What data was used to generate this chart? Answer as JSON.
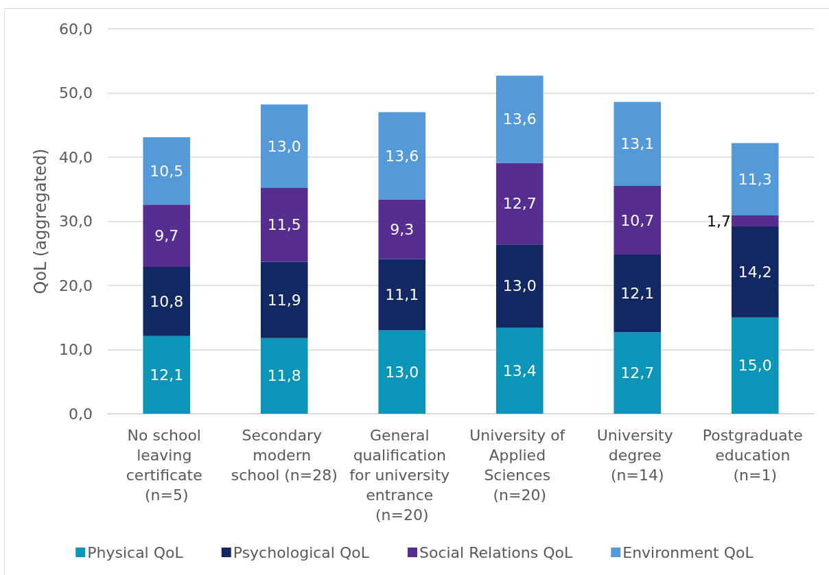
{
  "chart_data": {
    "type": "bar",
    "stacked": true,
    "ylabel": "QoL (aggregated)",
    "categories": [
      "No school leaving certificate (n=5)",
      "Secondary modern school (n=28)",
      "General qualification for university entrance (n=20)",
      "University of Applied Sciences (n=20)",
      "University degree (n=14)",
      "Postgraduate education (n=1)"
    ],
    "series": [
      {
        "name": "Physical QoL",
        "color": "#0b95b8",
        "values": [
          12.1,
          11.8,
          13.0,
          13.4,
          12.7,
          15.0
        ],
        "value_labels": [
          "12,1",
          "11,8",
          "13,0",
          "13,4",
          "12,7",
          "15,0"
        ]
      },
      {
        "name": "Psychological QoL",
        "color": "#112862",
        "values": [
          10.8,
          11.9,
          11.1,
          13.0,
          12.1,
          14.2
        ],
        "value_labels": [
          "10,8",
          "11,9",
          "11,1",
          "13,0",
          "12,1",
          "14,2"
        ]
      },
      {
        "name": "Social Relations QoL",
        "color": "#552e8f",
        "values": [
          9.7,
          11.5,
          9.3,
          12.7,
          10.7,
          1.7
        ],
        "value_labels": [
          "9,7",
          "11,5",
          "9,3",
          "12,7",
          "10,7",
          "1,7"
        ]
      },
      {
        "name": "Environment QoL",
        "color": "#549ad8",
        "values": [
          10.5,
          13.0,
          13.6,
          13.6,
          13.1,
          11.3
        ],
        "value_labels": [
          "10,5",
          "13,0",
          "13,6",
          "13,6",
          "13,1",
          "11,3"
        ]
      }
    ],
    "ylim": [
      0,
      60
    ],
    "yticks": [
      {
        "value": 0,
        "label": "0,0"
      },
      {
        "value": 10,
        "label": "10,0"
      },
      {
        "value": 20,
        "label": "20,0"
      },
      {
        "value": 30,
        "label": "30,0"
      },
      {
        "value": 40,
        "label": "40,0"
      },
      {
        "value": 50,
        "label": "50,0"
      },
      {
        "value": 60,
        "label": "60,0"
      }
    ],
    "grid": "y",
    "legend": "bottom"
  }
}
